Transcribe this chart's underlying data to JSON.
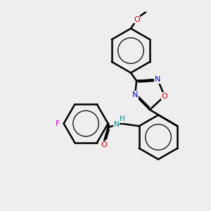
{
  "background_color": "#eeeeee",
  "bond_color": "#000000",
  "bond_width": 1.8,
  "aromatic_inner_lw": 0.9,
  "atom_colors": {
    "N": "#0000cc",
    "O_ring": "#cc0000",
    "O_carbonyl": "#cc0000",
    "O_methoxy": "#cc0000",
    "F": "#cc00cc",
    "NH": "#008888"
  },
  "figsize": [
    3.0,
    3.0
  ],
  "dpi": 100,
  "xlim": [
    0,
    10
  ],
  "ylim": [
    0,
    10
  ]
}
